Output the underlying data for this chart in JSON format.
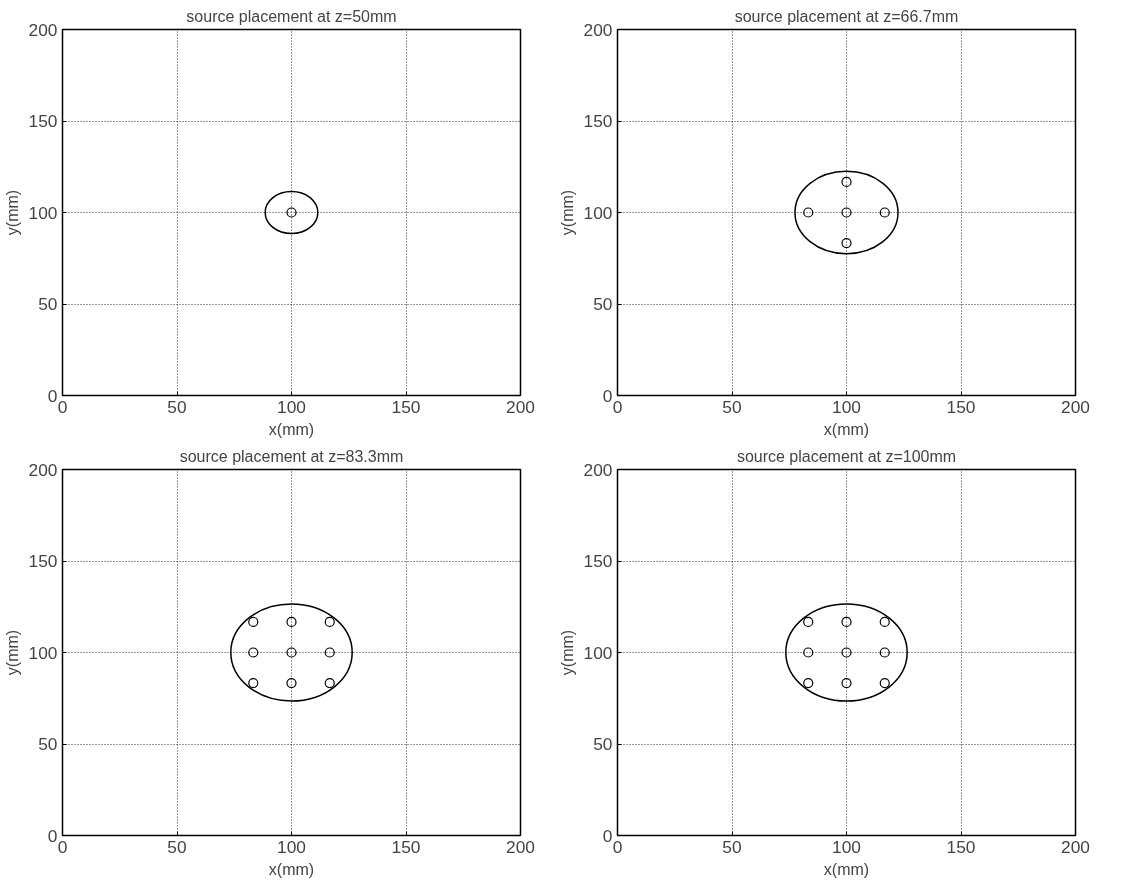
{
  "chart_data": [
    {
      "type": "scatter",
      "title": "source placement at z=50mm",
      "xlabel": "x(mm)",
      "ylabel": "y(mm)",
      "xlim": [
        0,
        200
      ],
      "ylim": [
        0,
        200
      ],
      "xticks": [
        0,
        50,
        100,
        150,
        200
      ],
      "yticks": [
        0,
        50,
        100,
        150,
        200
      ],
      "grid": true,
      "marker": "circle",
      "series": [
        {
          "color": "#000000",
          "x": [
            100
          ],
          "values": [
            100
          ]
        }
      ]
    },
    {
      "type": "scatter",
      "title": "source placement at z=66.7mm",
      "xlabel": "x(mm)",
      "ylabel": "y(mm)",
      "xlim": [
        0,
        200
      ],
      "ylim": [
        0,
        200
      ],
      "xticks": [
        0,
        50,
        100,
        150,
        200
      ],
      "yticks": [
        0,
        50,
        100,
        150,
        200
      ],
      "grid": true,
      "marker": "circle",
      "series": [
        {
          "color": "#000000",
          "x": [
            100,
            83.3,
            116.7,
            100,
            100
          ],
          "values": [
            100,
            100,
            100,
            116.7,
            83.3
          ]
        }
      ]
    },
    {
      "type": "scatter",
      "title": "source placement at z=83.3mm",
      "xlabel": "x(mm)",
      "ylabel": "y(mm)",
      "xlim": [
        0,
        200
      ],
      "ylim": [
        0,
        200
      ],
      "xticks": [
        0,
        50,
        100,
        150,
        200
      ],
      "yticks": [
        0,
        50,
        100,
        150,
        200
      ],
      "grid": true,
      "marker": "circle",
      "series": [
        {
          "color": "#000000",
          "x": [
            83.3,
            100,
            116.7,
            83.3,
            100,
            116.7,
            83.3,
            100,
            116.7
          ],
          "values": [
            116.7,
            116.7,
            116.7,
            100,
            100,
            100,
            83.3,
            83.3,
            83.3
          ]
        }
      ]
    },
    {
      "type": "scatter",
      "title": "source placement at z=100mm",
      "xlabel": "x(mm)",
      "ylabel": "y(mm)",
      "xlim": [
        0,
        200
      ],
      "ylim": [
        0,
        200
      ],
      "xticks": [
        0,
        50,
        100,
        150,
        200
      ],
      "yticks": [
        0,
        50,
        100,
        150,
        200
      ],
      "grid": true,
      "marker": "circle",
      "series": [
        {
          "color": "#000000",
          "x": [
            83.3,
            100,
            116.7,
            83.3,
            100,
            116.7,
            83.3,
            100,
            116.7
          ],
          "values": [
            116.7,
            116.7,
            116.7,
            100,
            100,
            100,
            83.3,
            83.3,
            83.3
          ]
        }
      ]
    }
  ]
}
